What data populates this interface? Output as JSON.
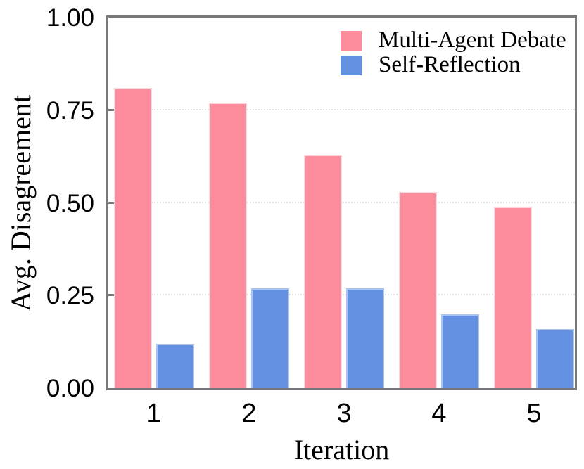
{
  "chart_data": {
    "type": "bar",
    "title": "",
    "xlabel": "Iteration",
    "ylabel": "Avg. Disagreement",
    "categories": [
      "1",
      "2",
      "3",
      "4",
      "5"
    ],
    "series": [
      {
        "name": "Multi-Agent Debate",
        "color": "#fc8b9b",
        "edge_color": "#fdd4db",
        "values": [
          0.81,
          0.77,
          0.63,
          0.53,
          0.49
        ]
      },
      {
        "name": "Self-Reflection",
        "color": "#6490e2",
        "edge_color": "#a9c3f0",
        "values": [
          0.12,
          0.27,
          0.27,
          0.2,
          0.16
        ]
      }
    ],
    "ylim": [
      0,
      1
    ],
    "yticks": [
      {
        "value": 0.0,
        "label": "0.00"
      },
      {
        "value": 0.25,
        "label": "0.25"
      },
      {
        "value": 0.5,
        "label": "0.50"
      },
      {
        "value": 0.75,
        "label": "0.75"
      },
      {
        "value": 1.0,
        "label": "1.00"
      }
    ],
    "grid": "horizontal-dotted",
    "legend_position": "upper-right"
  },
  "colors": {
    "frame": "#77787b",
    "gridline": "#e3e3e5",
    "text": "#000000",
    "background": "#ffffff"
  }
}
